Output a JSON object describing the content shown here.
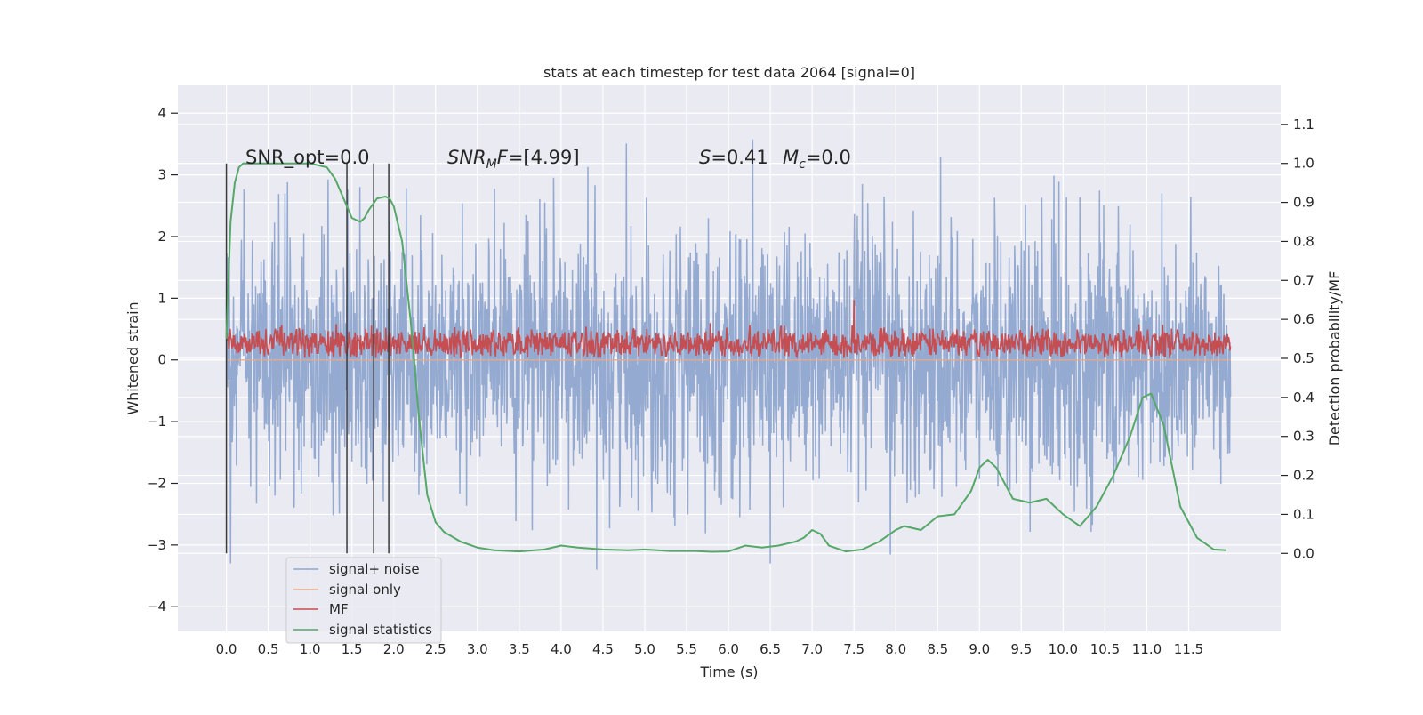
{
  "chart_data": {
    "type": "line",
    "title": "stats at each timestep for test data 2064 [signal=0]",
    "xlabel": "Time (s)",
    "ylabel_left": "Whitened strain",
    "ylabel_right": "Detection probability/MF",
    "xlim": [
      -0.58,
      12.6
    ],
    "ylim_left": [
      -4.4,
      4.45
    ],
    "ylim_right": [
      -0.2,
      1.2
    ],
    "x_ticks": [
      0.0,
      0.5,
      1.0,
      1.5,
      2.0,
      2.5,
      3.0,
      3.5,
      4.0,
      4.5,
      5.0,
      5.5,
      6.0,
      6.5,
      7.0,
      7.5,
      8.0,
      8.5,
      9.0,
      9.5,
      10.0,
      10.5,
      11.0,
      11.5
    ],
    "x_tick_labels": [
      "0.0",
      "0.5",
      "1.0",
      "1.5",
      "2.0",
      "2.5",
      "3.0",
      "3.5",
      "4.0",
      "4.5",
      "5.0",
      "5.5",
      "6.0",
      "6.5",
      "7.0",
      "7.5",
      "8.0",
      "8.5",
      "9.0",
      "9.5",
      "10.0",
      "10.5",
      "11.0",
      "11.5"
    ],
    "y_left_ticks": [
      4,
      3,
      2,
      1,
      0,
      -1,
      -2,
      -3,
      -4
    ],
    "y_left_tick_labels": [
      "4",
      "3",
      "2",
      "1",
      "0",
      "−1",
      "−2",
      "−3",
      "−4"
    ],
    "y_right_ticks": [
      1.1,
      1.0,
      0.9,
      0.8,
      0.7,
      0.6,
      0.5,
      0.4,
      0.3,
      0.2,
      0.1,
      0.0
    ],
    "y_right_tick_labels": [
      "1.1",
      "1.0",
      "0.9",
      "0.8",
      "0.7",
      "0.6",
      "0.5",
      "0.4",
      "0.3",
      "0.2",
      "0.1",
      "0.0"
    ],
    "grid": true,
    "legend_position": "lower-left",
    "annotations": {
      "snr_opt": "SNR_opt=0.0",
      "snr_mf_sym": "SNR",
      "snr_mf_sub": "M",
      "snr_mf_rest": "F=[4.99]",
      "s_sym": "S",
      "s_rest": "=0.41",
      "mc_sym": "M",
      "mc_sub": "c",
      "mc_rest": "=0.0"
    },
    "vertical_markers_x": [
      0.0,
      1.44,
      1.76,
      1.94
    ],
    "series": [
      {
        "name": "signal+ noise",
        "axis": "left",
        "color": "#8fa6cf",
        "description_values": {
          "x_range": [
            0.0,
            12.0
          ],
          "typical_range": [
            -2.0,
            2.0
          ],
          "max": 4.1,
          "min": -3.8
        }
      },
      {
        "name": "signal only",
        "axis": "left",
        "color": "#e8a98a",
        "values": "zero"
      },
      {
        "name": "MF",
        "axis": "right",
        "color": "#c44e52",
        "description_values": {
          "x_range": [
            0.0,
            12.0
          ],
          "typical_range": [
            0.5,
            0.56
          ],
          "peak": {
            "x": 7.5,
            "y": 0.65
          }
        }
      },
      {
        "name": "signal statistics",
        "axis": "right",
        "color": "#55a868",
        "x": [
          0.0,
          0.05,
          0.1,
          0.15,
          0.2,
          0.3,
          0.5,
          0.8,
          1.0,
          1.2,
          1.3,
          1.4,
          1.5,
          1.6,
          1.65,
          1.7,
          1.8,
          1.9,
          1.95,
          2.0,
          2.1,
          2.2,
          2.25,
          2.3,
          2.4,
          2.5,
          2.6,
          2.8,
          3.0,
          3.2,
          3.5,
          3.8,
          4.0,
          4.2,
          4.5,
          4.8,
          5.0,
          5.3,
          5.6,
          5.8,
          6.0,
          6.2,
          6.4,
          6.6,
          6.8,
          6.9,
          7.0,
          7.1,
          7.2,
          7.4,
          7.6,
          7.8,
          8.0,
          8.1,
          8.3,
          8.5,
          8.7,
          8.9,
          9.0,
          9.1,
          9.2,
          9.4,
          9.6,
          9.8,
          10.0,
          10.2,
          10.4,
          10.6,
          10.8,
          10.95,
          11.05,
          11.2,
          11.4,
          11.6,
          11.8,
          11.95
        ],
        "y": [
          0.55,
          0.85,
          0.95,
          0.99,
          1.0,
          1.0,
          1.0,
          1.0,
          1.0,
          0.99,
          0.96,
          0.91,
          0.86,
          0.85,
          0.86,
          0.88,
          0.91,
          0.915,
          0.91,
          0.89,
          0.8,
          0.6,
          0.48,
          0.35,
          0.15,
          0.08,
          0.055,
          0.03,
          0.015,
          0.008,
          0.005,
          0.01,
          0.02,
          0.015,
          0.01,
          0.008,
          0.01,
          0.006,
          0.006,
          0.004,
          0.005,
          0.02,
          0.015,
          0.02,
          0.03,
          0.04,
          0.06,
          0.05,
          0.02,
          0.005,
          0.01,
          0.03,
          0.06,
          0.07,
          0.06,
          0.095,
          0.1,
          0.16,
          0.22,
          0.24,
          0.22,
          0.14,
          0.13,
          0.14,
          0.1,
          0.07,
          0.12,
          0.2,
          0.3,
          0.4,
          0.41,
          0.33,
          0.12,
          0.04,
          0.01,
          0.008
        ]
      }
    ]
  }
}
